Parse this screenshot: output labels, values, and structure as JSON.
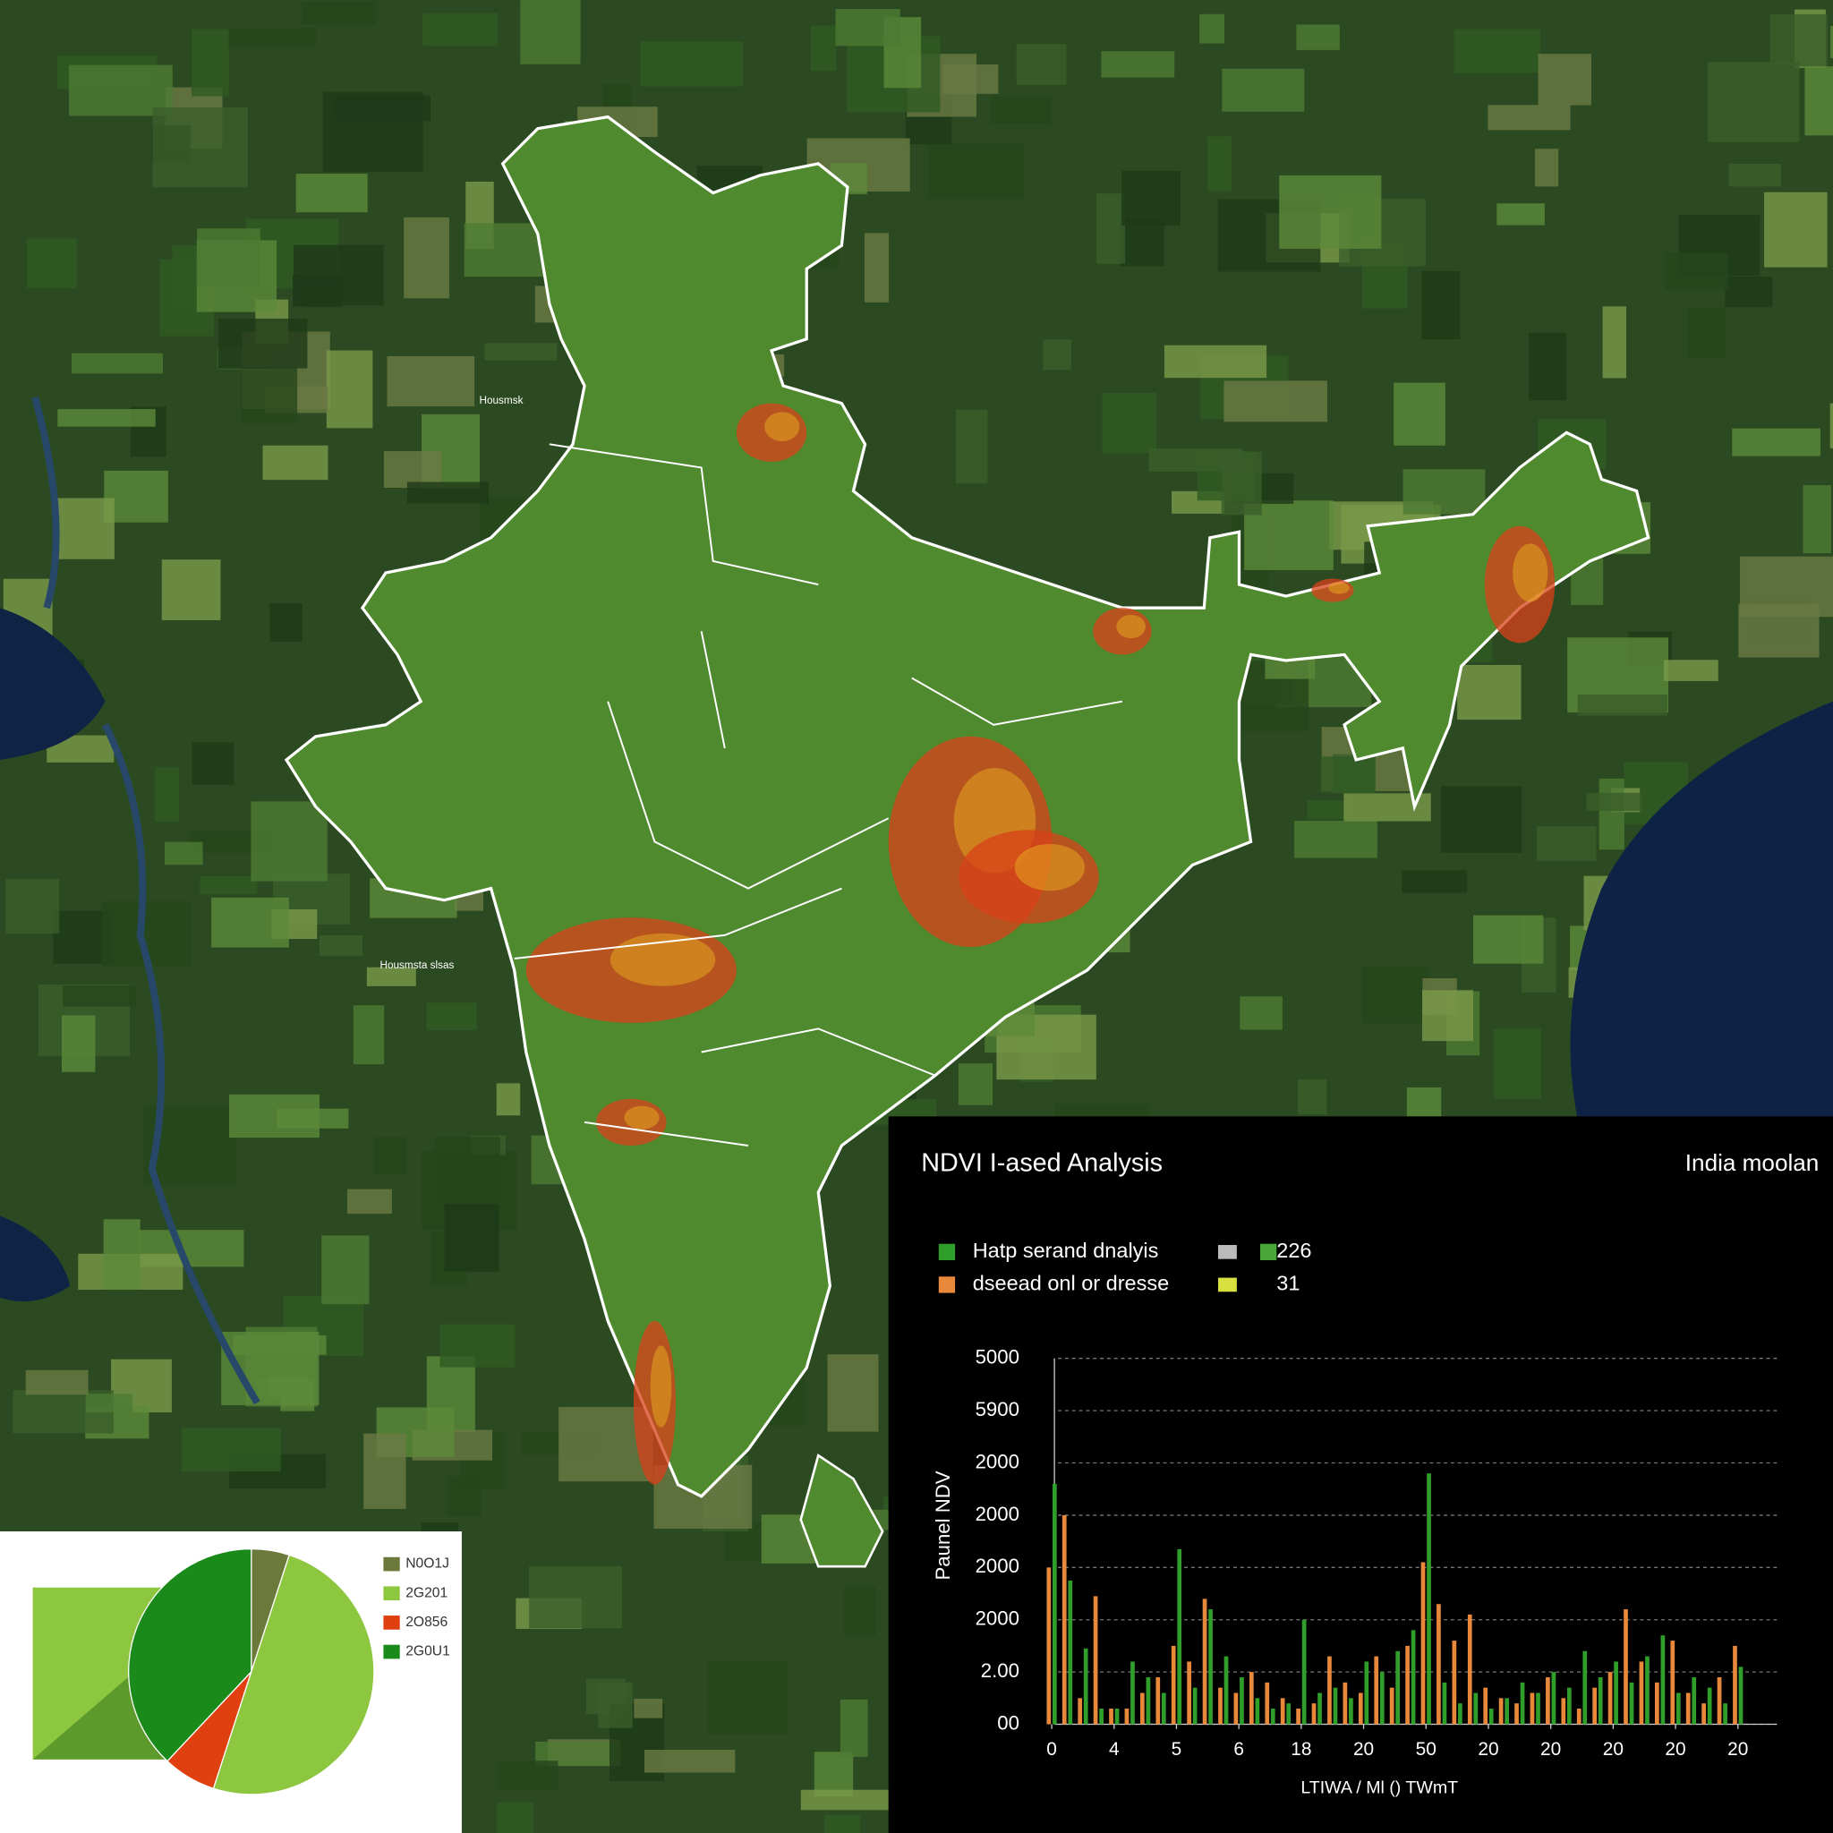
{
  "map": {
    "labels": [
      "Housmsk",
      "Housmsta slsas"
    ]
  },
  "chart_data": [
    {
      "type": "bar",
      "title": "NDVI I-ased Analysis",
      "subtitle": "India moolan",
      "y_label": "Paunel NDV",
      "x_label": "LTIWA / Ml () TWmT",
      "legend": [
        {
          "name": "Hatp serand dnalyis",
          "value": "226"
        },
        {
          "name": "dseead onl or dresse",
          "value": "31"
        }
      ],
      "x": [
        0,
        1,
        2,
        3,
        4,
        5,
        6,
        7,
        8,
        9,
        10,
        11,
        12,
        13,
        14,
        15,
        16,
        17,
        18,
        19,
        20,
        21,
        22,
        23,
        24,
        25,
        26,
        27,
        28,
        29,
        30,
        31,
        32,
        33,
        34,
        35,
        36,
        37,
        38,
        39,
        40,
        41,
        42,
        43,
        44
      ],
      "xlim": [
        -0.5,
        46.5
      ],
      "xticks": [
        {
          "value": 0,
          "label": "0"
        },
        {
          "value": 4,
          "label": "4"
        },
        {
          "value": 8,
          "label": "5"
        },
        {
          "value": 12,
          "label": "6"
        },
        {
          "value": 16,
          "label": "18"
        },
        {
          "value": 20,
          "label": "20"
        },
        {
          "value": 24,
          "label": "50"
        },
        {
          "value": 28,
          "label": "20"
        },
        {
          "value": 32,
          "label": "20"
        },
        {
          "value": 36,
          "label": "20"
        },
        {
          "value": 40,
          "label": "20"
        },
        {
          "value": 44,
          "label": "20"
        }
      ],
      "ylim": [
        0,
        7
      ],
      "yticks": [
        {
          "value": 0,
          "label": "00"
        },
        {
          "value": 1,
          "label": "2.00"
        },
        {
          "value": 2,
          "label": "2000"
        },
        {
          "value": 3,
          "label": "2000"
        },
        {
          "value": 4,
          "label": "2000"
        },
        {
          "value": 5,
          "label": "2000"
        },
        {
          "value": 6,
          "label": "5900"
        },
        {
          "value": 7,
          "label": "5000"
        }
      ],
      "grid": true,
      "series": [
        {
          "name": "Hatp serand dnalyis",
          "color": "#2f9e2a",
          "values": [
            4.6,
            2.75,
            1.45,
            0.3,
            0.3,
            1.2,
            0.9,
            0.6,
            3.35,
            0.7,
            2.2,
            1.3,
            0.9,
            0.5,
            0.3,
            0.4,
            2.0,
            0.6,
            0.7,
            0.5,
            1.2,
            1.0,
            1.4,
            1.8,
            4.8,
            0.8,
            0.4,
            0.6,
            0.3,
            0.5,
            0.8,
            0.6,
            1.0,
            0.7,
            1.4,
            0.9,
            1.2,
            0.8,
            1.3,
            1.7,
            0.6,
            0.9,
            0.7,
            0.4,
            1.1
          ]
        },
        {
          "name": "dseead onl or dresse",
          "color": "#e8883a",
          "values": [
            3.0,
            4.0,
            0.5,
            2.45,
            0.3,
            0.3,
            0.6,
            0.9,
            1.5,
            1.2,
            2.4,
            0.7,
            0.6,
            1.0,
            0.8,
            0.5,
            0.3,
            0.4,
            1.3,
            0.8,
            0.6,
            1.3,
            0.7,
            1.5,
            3.1,
            2.3,
            1.6,
            2.1,
            0.7,
            0.5,
            0.4,
            0.6,
            0.9,
            0.5,
            0.3,
            0.7,
            1.0,
            2.2,
            1.2,
            0.8,
            1.6,
            0.6,
            0.4,
            0.9,
            1.5
          ]
        }
      ]
    },
    {
      "type": "pie",
      "categories": [
        "N0O1J",
        "2G201",
        "2O856",
        "2G0U1"
      ],
      "values": [
        5,
        50,
        7,
        38
      ],
      "colors": [
        "#6b7a3a",
        "#8dc63f",
        "#e04010",
        "#1a8a1a"
      ]
    }
  ]
}
